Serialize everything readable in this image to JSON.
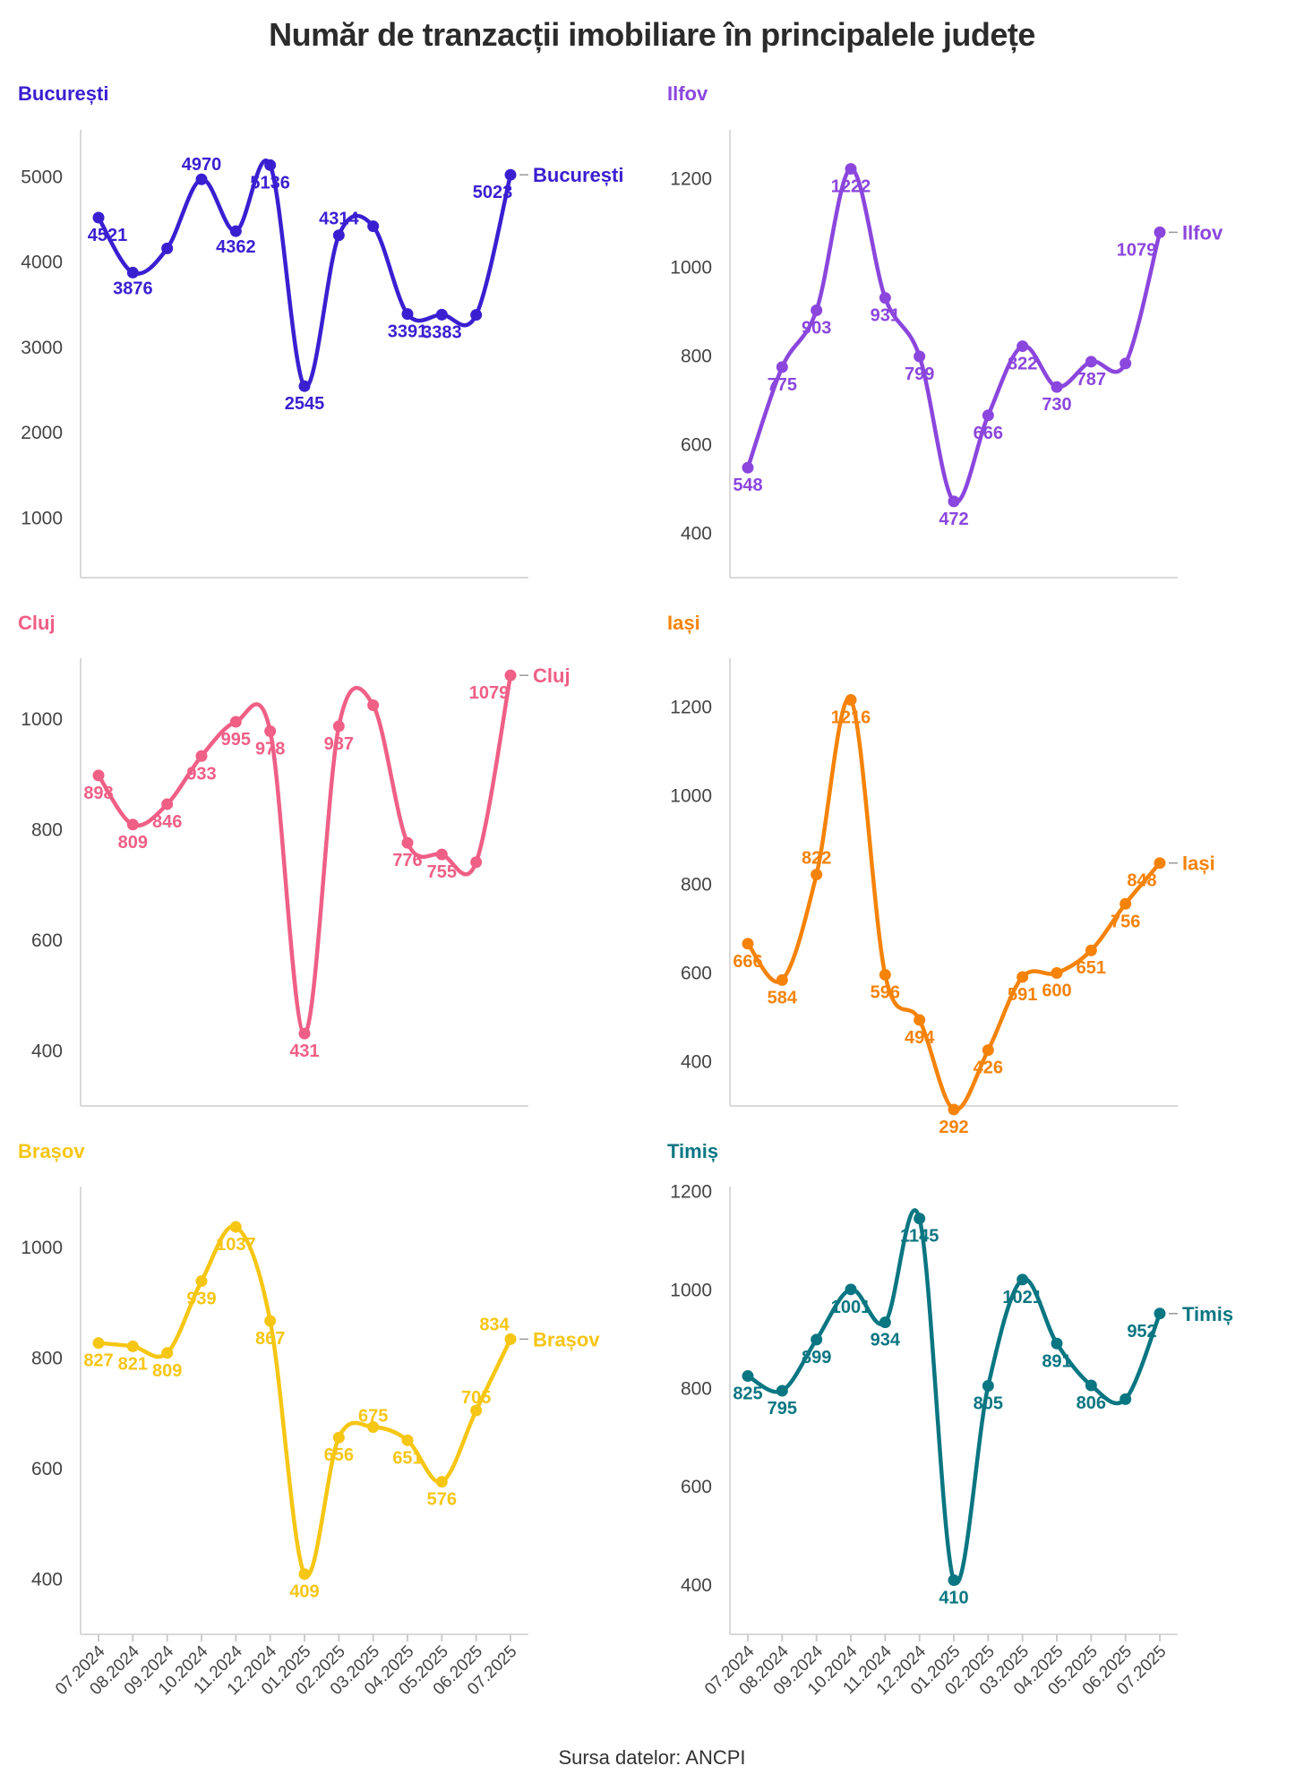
{
  "title": "Număr de tranzacții imobiliare în principalele județe",
  "source": "Sursa datelor: ANCPI",
  "chart_data": [
    {
      "type": "line",
      "title": "București",
      "color": "#3a1fd1",
      "categories": [
        "07.2024",
        "08.2024",
        "09.2024",
        "10.2024",
        "11.2024",
        "12.2024",
        "01.2025",
        "02.2025",
        "03.2025",
        "04.2025",
        "05.2025",
        "06.2025",
        "07.2025"
      ],
      "values": [
        4521,
        3876,
        4160,
        4970,
        4362,
        5136,
        2545,
        4314,
        4420,
        3391,
        3383,
        3380,
        5023
      ],
      "labels": [
        "4521",
        "3876",
        "",
        "4970",
        "4362",
        "5136",
        "2545",
        "4314",
        "",
        "3391",
        "3383",
        "",
        "5023"
      ],
      "ylim": [
        300,
        5550
      ],
      "yticks": [
        1000,
        2000,
        3000,
        4000,
        5000
      ],
      "end_label": "București"
    },
    {
      "type": "line",
      "title": "Ilfov",
      "color": "#8b46dd",
      "categories": [
        "07.2024",
        "08.2024",
        "09.2024",
        "10.2024",
        "11.2024",
        "12.2024",
        "01.2025",
        "02.2025",
        "03.2025",
        "04.2025",
        "05.2025",
        "06.2025",
        "07.2025"
      ],
      "values": [
        548,
        775,
        903,
        1222,
        931,
        799,
        472,
        666,
        822,
        730,
        787,
        783,
        1079
      ],
      "labels": [
        "548",
        "775",
        "903",
        "1222",
        "931",
        "799",
        "472",
        "666",
        "822",
        "730",
        "787",
        "",
        "1079"
      ],
      "ylim": [
        300,
        1310
      ],
      "yticks": [
        400,
        600,
        800,
        1000,
        1200
      ],
      "end_label": "Ilfov"
    },
    {
      "type": "line",
      "title": "Cluj",
      "color": "#ef5f86",
      "categories": [
        "07.2024",
        "08.2024",
        "09.2024",
        "10.2024",
        "11.2024",
        "12.2024",
        "01.2025",
        "02.2025",
        "03.2025",
        "04.2025",
        "05.2025",
        "06.2025",
        "07.2025"
      ],
      "values": [
        898,
        809,
        846,
        933,
        995,
        978,
        431,
        987,
        1025,
        776,
        755,
        741,
        1079
      ],
      "labels": [
        "898",
        "809",
        "846",
        "933",
        "995",
        "978",
        "431",
        "987",
        "",
        "776",
        "755",
        "",
        "1079"
      ],
      "ylim": [
        300,
        1110
      ],
      "yticks": [
        400,
        600,
        800,
        1000
      ],
      "end_label": "Cluj"
    },
    {
      "type": "line",
      "title": "Iași",
      "color": "#f5830a",
      "categories": [
        "07.2024",
        "08.2024",
        "09.2024",
        "10.2024",
        "11.2024",
        "12.2024",
        "01.2025",
        "02.2025",
        "03.2025",
        "04.2025",
        "05.2025",
        "06.2025",
        "07.2025"
      ],
      "values": [
        666,
        584,
        822,
        1216,
        596,
        494,
        292,
        426,
        591,
        600,
        651,
        756,
        848
      ],
      "labels": [
        "666",
        "584",
        "822",
        "1216",
        "596",
        "494",
        "292",
        "426",
        "591",
        "600",
        "651",
        "756",
        "848"
      ],
      "ylim": [
        300,
        1310
      ],
      "yticks": [
        400,
        600,
        800,
        1000,
        1200
      ],
      "end_label": "Iași"
    },
    {
      "type": "line",
      "title": "Brașov",
      "color": "#f6c614",
      "categories": [
        "07.2024",
        "08.2024",
        "09.2024",
        "10.2024",
        "11.2024",
        "12.2024",
        "01.2025",
        "02.2025",
        "03.2025",
        "04.2025",
        "05.2025",
        "06.2025",
        "07.2025"
      ],
      "values": [
        827,
        821,
        809,
        939,
        1037,
        867,
        409,
        656,
        675,
        651,
        576,
        705,
        834
      ],
      "labels": [
        "827",
        "821",
        "809",
        "939",
        "1037",
        "867",
        "409",
        "656",
        "675",
        "651",
        "576",
        "705",
        "834"
      ],
      "ylim": [
        300,
        1110
      ],
      "yticks": [
        400,
        600,
        800,
        1000
      ],
      "end_label": "Brașov"
    },
    {
      "type": "line",
      "title": "Timiș",
      "color": "#0a7682",
      "categories": [
        "07.2024",
        "08.2024",
        "09.2024",
        "10.2024",
        "11.2024",
        "12.2024",
        "01.2025",
        "02.2025",
        "03.2025",
        "04.2025",
        "05.2025",
        "06.2025",
        "07.2025"
      ],
      "values": [
        825,
        795,
        899,
        1001,
        934,
        1145,
        410,
        805,
        1021,
        891,
        806,
        778,
        952
      ],
      "labels": [
        "825",
        "795",
        "899",
        "1001",
        "934",
        "1145",
        "410",
        "805",
        "1021",
        "891",
        "806",
        "",
        "952"
      ],
      "ylim": [
        300,
        1210
      ],
      "yticks": [
        400,
        600,
        800,
        1000,
        1200
      ],
      "end_label": "Timiș"
    }
  ]
}
